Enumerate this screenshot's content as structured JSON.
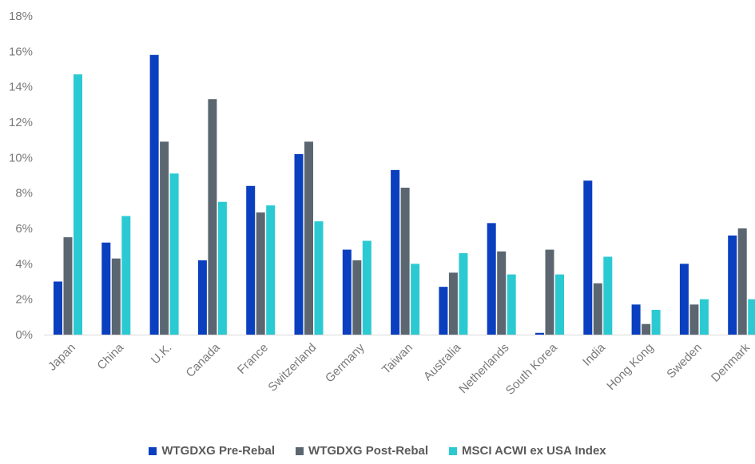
{
  "chart_data": {
    "type": "bar",
    "categories": [
      "Japan",
      "China",
      "U.K.",
      "Canada",
      "France",
      "Switzerland",
      "Germany",
      "Taiwan",
      "Australia",
      "Netherlands",
      "South Korea",
      "India",
      "Hong Kong",
      "Sweden",
      "Denmark"
    ],
    "series": [
      {
        "name": "WTGDXG Pre-Rebal",
        "color": "#0a3fbf",
        "values": [
          3.0,
          5.2,
          15.8,
          4.2,
          8.4,
          10.2,
          4.8,
          9.3,
          2.7,
          6.3,
          0.1,
          8.7,
          1.7,
          4.0,
          5.6
        ]
      },
      {
        "name": "WTGDXG Post-Rebal",
        "color": "#5b6670",
        "values": [
          5.5,
          4.3,
          10.9,
          13.3,
          6.9,
          10.9,
          4.2,
          8.3,
          3.5,
          4.7,
          4.8,
          2.9,
          0.6,
          1.7,
          6.0
        ]
      },
      {
        "name": "MSCI ACWI ex USA Index",
        "color": "#2bcad2",
        "values": [
          14.7,
          6.7,
          9.1,
          7.5,
          7.3,
          6.4,
          5.3,
          4.0,
          4.6,
          3.4,
          3.4,
          4.4,
          1.4,
          2.0,
          2.0
        ]
      }
    ],
    "y_ticks": [
      "0%",
      "2%",
      "4%",
      "6%",
      "8%",
      "10%",
      "12%",
      "14%",
      "16%",
      "18%"
    ],
    "ylim": [
      0,
      18
    ],
    "grid": false,
    "legend_position": "bottom-center"
  }
}
